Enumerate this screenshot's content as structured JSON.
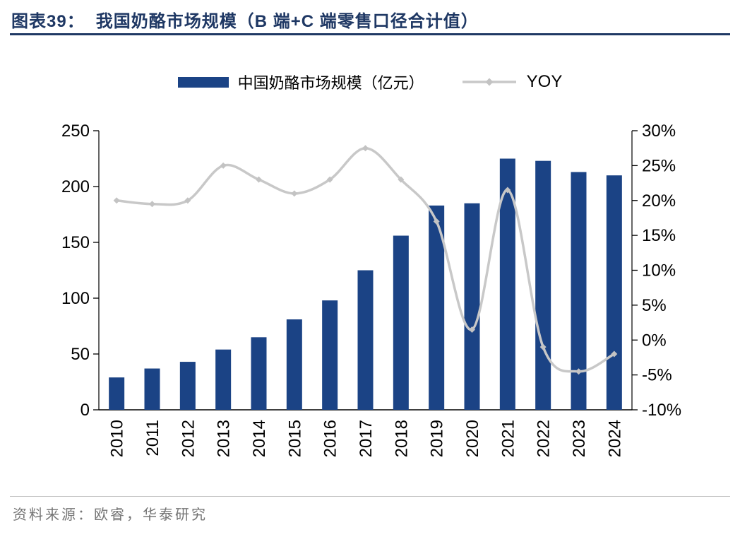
{
  "header": {
    "figure_label": "图表39：",
    "title": "我国奶酪市场规模（B 端+C 端零售口径合计值）"
  },
  "legend": {
    "bar_label": "中国奶酪市场规模（亿元）",
    "line_label": "YOY"
  },
  "footer": {
    "source": "资料来源：欧睿，华泰研究"
  },
  "colors": {
    "bar": "#1B4385",
    "line": "#C8C8C8",
    "marker": "#C3C3C3",
    "title": "#1F3864",
    "title_rule": "#1F3864",
    "axis": "#000000",
    "footer_rule": "#BFBFBF",
    "source_text": "#757575"
  },
  "chart_data": {
    "type": "bar",
    "subtype": "combo bar + line, dual y-axis, no gridlines, legend on top",
    "title": "我国奶酪市场规模（B 端+C 端零售口径合计值）",
    "categories": [
      "2010",
      "2011",
      "2012",
      "2013",
      "2014",
      "2015",
      "2016",
      "2017",
      "2018",
      "2019",
      "2020",
      "2021",
      "2022",
      "2023",
      "2024"
    ],
    "series": [
      {
        "name": "中国奶酪市场规模（亿元）",
        "type": "bar",
        "axis": "left",
        "values": [
          29,
          37,
          43,
          54,
          65,
          81,
          98,
          125,
          156,
          183,
          185,
          225,
          223,
          213,
          210
        ]
      },
      {
        "name": "YOY",
        "type": "line",
        "axis": "right",
        "unit": "%",
        "values": [
          20,
          19.5,
          20,
          25,
          23,
          21,
          23,
          27.5,
          23,
          17,
          1.5,
          21.5,
          -1,
          -4.5,
          -2
        ]
      }
    ],
    "left_axis": {
      "min": 0,
      "max": 250,
      "step": 50,
      "ticks": [
        "0",
        "50",
        "100",
        "150",
        "200",
        "250"
      ]
    },
    "right_axis": {
      "min": -10,
      "max": 30,
      "step": 5,
      "ticks": [
        "-10%",
        "-5%",
        "0%",
        "5%",
        "10%",
        "15%",
        "20%",
        "25%",
        "30%"
      ]
    },
    "grid": false,
    "legend_position": "top"
  }
}
